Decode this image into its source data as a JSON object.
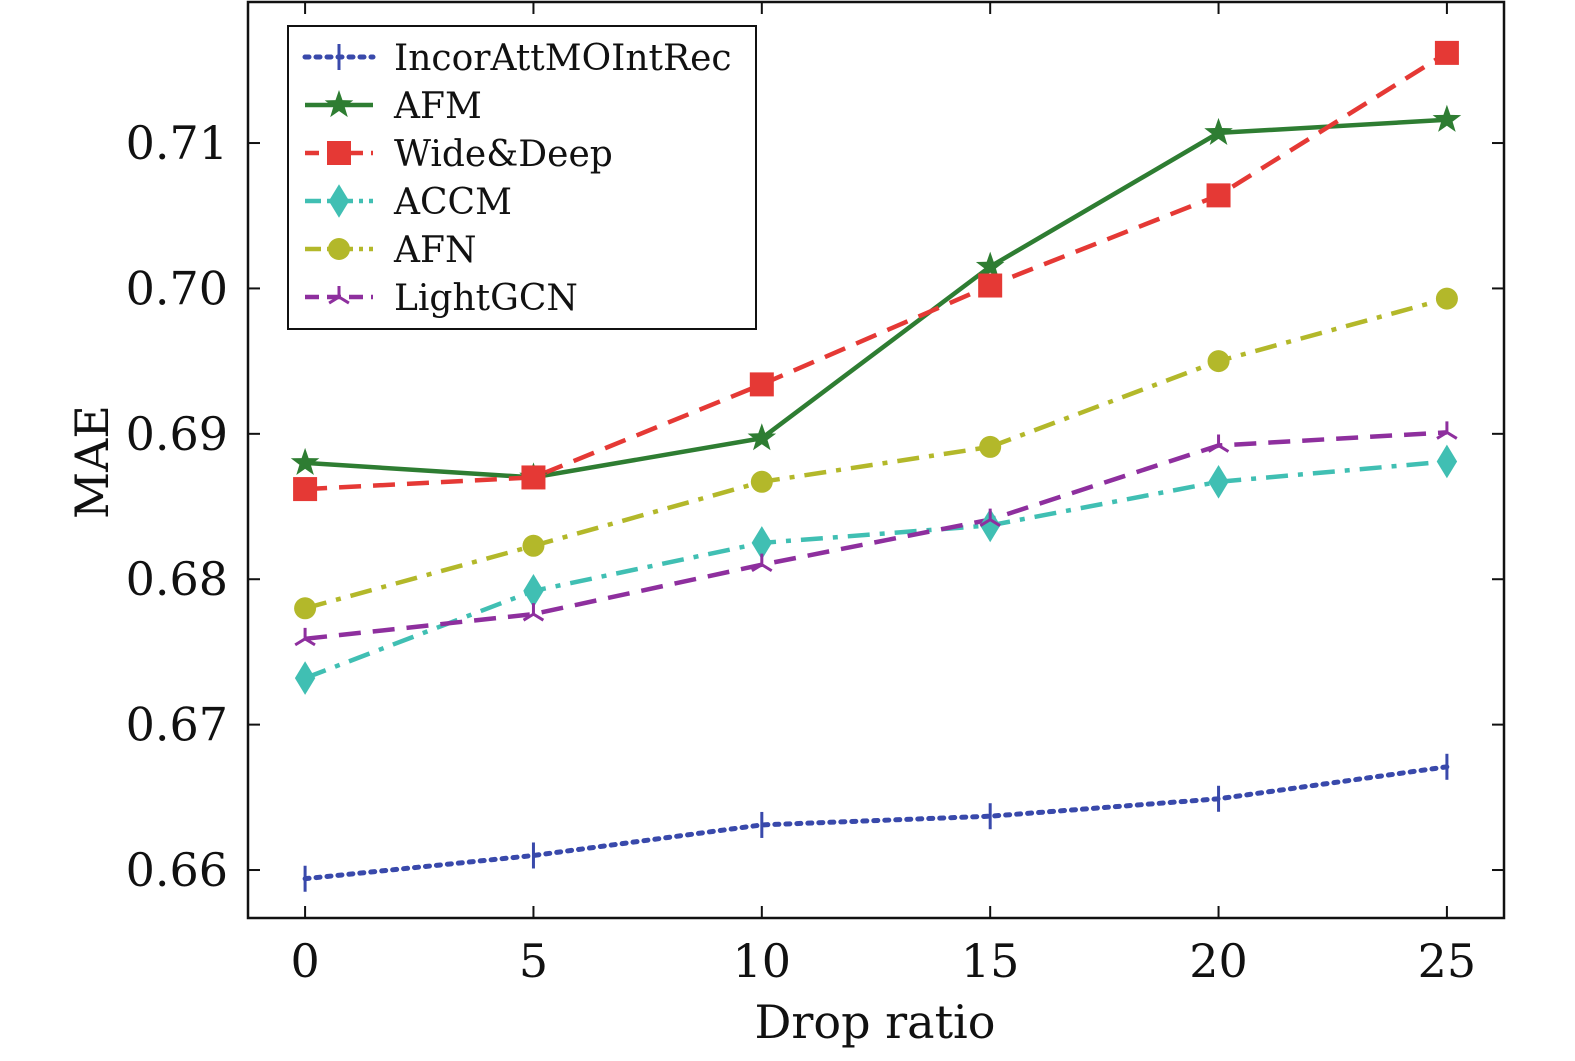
{
  "chart_data": {
    "type": "line",
    "xlabel": "Drop ratio",
    "ylabel": "MAE",
    "x": [
      0,
      5,
      10,
      15,
      20,
      25
    ],
    "xlim": [
      -1.25,
      26.25
    ],
    "ylim": [
      0.6567,
      0.7197
    ],
    "xticks": [
      0,
      5,
      10,
      15,
      20,
      25
    ],
    "yticks": [
      0.66,
      0.67,
      0.68,
      0.69,
      0.7,
      0.71
    ],
    "xtick_labels": [
      "0",
      "5",
      "10",
      "15",
      "20",
      "25"
    ],
    "ytick_labels": [
      "0.66",
      "0.67",
      "0.68",
      "0.69",
      "0.70",
      "0.71"
    ],
    "grid": false,
    "legend_position": "top-left",
    "series": [
      {
        "name": "IncorAttMOIntRec",
        "color": "#3949ab",
        "line_style": "dotted",
        "marker": "vertical-tick",
        "values": [
          0.6594,
          0.661,
          0.6631,
          0.6637,
          0.6649,
          0.6671
        ]
      },
      {
        "name": "AFM",
        "color": "#2e7d32",
        "line_style": "solid",
        "marker": "star",
        "values": [
          0.688,
          0.687,
          0.6897,
          0.7015,
          0.7107,
          0.7116
        ]
      },
      {
        "name": "Wide&Deep",
        "color": "#e53935",
        "line_style": "dashed",
        "marker": "square",
        "values": [
          0.6862,
          0.687,
          0.6934,
          0.7002,
          0.7064,
          0.7162
        ]
      },
      {
        "name": "ACCM",
        "color": "#40bfb3",
        "line_style": "dash-dot",
        "marker": "diamond",
        "values": [
          0.6732,
          0.6792,
          0.6825,
          0.6837,
          0.6867,
          0.6881
        ]
      },
      {
        "name": "AFN",
        "color": "#b3b82a",
        "line_style": "dash-dot",
        "marker": "circle",
        "values": [
          0.678,
          0.6823,
          0.6867,
          0.6891,
          0.695,
          0.6993
        ]
      },
      {
        "name": "LightGCN",
        "color": "#8e2f9e",
        "line_style": "dashed",
        "marker": "tri",
        "values": [
          0.6759,
          0.6776,
          0.681,
          0.6841,
          0.6892,
          0.6901
        ]
      }
    ]
  }
}
